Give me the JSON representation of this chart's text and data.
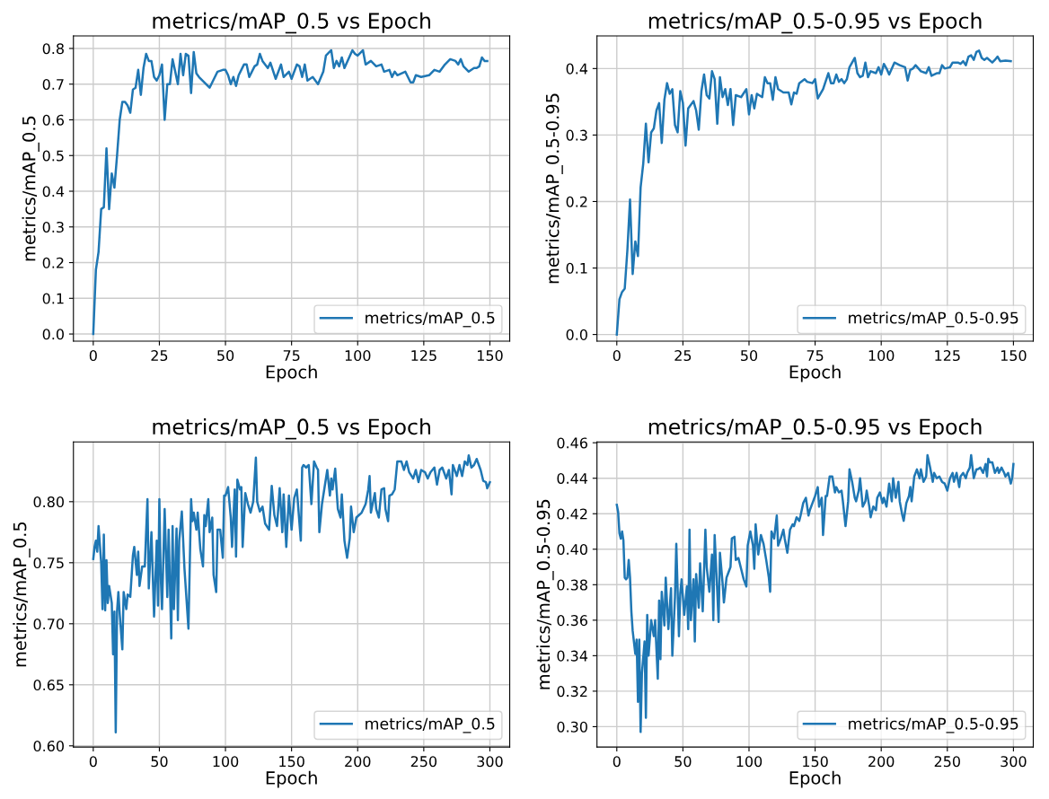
{
  "chart_data": [
    {
      "type": "line",
      "title": "metrics/mAP_0.5 vs Epoch",
      "xlabel": "Epoch",
      "ylabel": "metrics/mAP_0.5",
      "grid": true,
      "legend": "lower right",
      "xlim": [
        -7.5,
        157.5
      ],
      "ylim": [
        -0.02,
        0.835
      ],
      "xticks": [
        0,
        25,
        50,
        75,
        100,
        125,
        150
      ],
      "yticks": [
        {
          "value": 0,
          "label": "0.0"
        },
        0.1,
        0.2,
        0.3,
        0.4,
        0.5,
        0.6,
        0.7,
        0.8
      ],
      "x": [
        0,
        1,
        2,
        3,
        4,
        5,
        6,
        7,
        8,
        9,
        10,
        11,
        12,
        13,
        14,
        15,
        16,
        17,
        18,
        19,
        20,
        21,
        22,
        23,
        24,
        25,
        26,
        27,
        28,
        29,
        30,
        31,
        32,
        33,
        34,
        35,
        36,
        37,
        38,
        39,
        40,
        44,
        47,
        49,
        50,
        51,
        52,
        53,
        54,
        55,
        57,
        58,
        59,
        61,
        62,
        63,
        64,
        66,
        67,
        69,
        71,
        72,
        74,
        75,
        77,
        78,
        79,
        80,
        81,
        83,
        85,
        87,
        88,
        90,
        91,
        92,
        93,
        94,
        95,
        98,
        99,
        100,
        102,
        103,
        105,
        107,
        109,
        110,
        112,
        113,
        114,
        115,
        118,
        120,
        121,
        122,
        124,
        127,
        129,
        131,
        133,
        135,
        137,
        138,
        139,
        140,
        142,
        144,
        145,
        146,
        147,
        148,
        149
      ],
      "series": [
        {
          "name": "metrics/mAP_0.5",
          "color": "#1f77b4",
          "values": [
            0,
            0.18,
            0.23,
            0.35,
            0.355,
            0.52,
            0.35,
            0.45,
            0.41,
            0.5,
            0.6,
            0.65,
            0.65,
            0.64,
            0.62,
            0.685,
            0.69,
            0.74,
            0.67,
            0.745,
            0.785,
            0.765,
            0.765,
            0.72,
            0.71,
            0.725,
            0.755,
            0.6,
            0.7,
            0.7,
            0.77,
            0.735,
            0.7,
            0.785,
            0.725,
            0.785,
            0.78,
            0.675,
            0.79,
            0.73,
            0.72,
            0.69,
            0.735,
            0.74,
            0.74,
            0.725,
            0.7,
            0.72,
            0.695,
            0.725,
            0.755,
            0.755,
            0.72,
            0.75,
            0.755,
            0.785,
            0.765,
            0.745,
            0.76,
            0.715,
            0.755,
            0.72,
            0.735,
            0.715,
            0.755,
            0.75,
            0.72,
            0.755,
            0.71,
            0.72,
            0.7,
            0.735,
            0.78,
            0.795,
            0.745,
            0.765,
            0.75,
            0.775,
            0.745,
            0.795,
            0.785,
            0.78,
            0.795,
            0.755,
            0.765,
            0.75,
            0.755,
            0.735,
            0.74,
            0.72,
            0.735,
            0.725,
            0.735,
            0.705,
            0.705,
            0.725,
            0.72,
            0.725,
            0.74,
            0.735,
            0.755,
            0.77,
            0.765,
            0.755,
            0.77,
            0.75,
            0.735,
            0.745,
            0.745,
            0.75,
            0.775,
            0.765,
            0.765
          ]
        }
      ]
    },
    {
      "type": "line",
      "title": "metrics/mAP_0.5-0.95 vs Epoch",
      "xlabel": "Epoch",
      "ylabel": "metrics/mAP_0.5-0.95",
      "grid": true,
      "legend": "lower right",
      "xlim": [
        -7.5,
        157.5
      ],
      "ylim": [
        -0.01,
        0.449
      ],
      "xticks": [
        0,
        25,
        50,
        75,
        100,
        125,
        150
      ],
      "yticks": [
        {
          "value": 0,
          "label": "0.0"
        },
        0.1,
        0.2,
        0.3,
        0.4
      ],
      "x": [
        0,
        1,
        2,
        3,
        4,
        5,
        6,
        7,
        8,
        9,
        10,
        11,
        12,
        13,
        14,
        15,
        16,
        17,
        18,
        19,
        20,
        21,
        22,
        23,
        24,
        25,
        26,
        27,
        29,
        30,
        31,
        32,
        33,
        34,
        35,
        36,
        37,
        38,
        39,
        40,
        41,
        42,
        43,
        44,
        45,
        47,
        49,
        50,
        51,
        52,
        53,
        55,
        56,
        57,
        58,
        59,
        60,
        61,
        63,
        65,
        66,
        67,
        68,
        69,
        71,
        72,
        74,
        75,
        76,
        78,
        80,
        81,
        82,
        83,
        84,
        85,
        86,
        87,
        88,
        90,
        91,
        92,
        93,
        94,
        95,
        96,
        98,
        99,
        100,
        101,
        102,
        103,
        105,
        107,
        109,
        110,
        111,
        112,
        113,
        115,
        117,
        118,
        119,
        121,
        122,
        123,
        124,
        126,
        127,
        129,
        130,
        131,
        132,
        133,
        134,
        135,
        136,
        137,
        138,
        139,
        140,
        142,
        143,
        144,
        145,
        147,
        149
      ],
      "series": [
        {
          "name": "metrics/mAP_0.5-0.95",
          "color": "#1f77b4",
          "values": [
            0,
            0.053,
            0.064,
            0.069,
            0.127,
            0.203,
            0.091,
            0.14,
            0.118,
            0.221,
            0.257,
            0.317,
            0.259,
            0.304,
            0.31,
            0.337,
            0.348,
            0.288,
            0.353,
            0.378,
            0.362,
            0.369,
            0.315,
            0.304,
            0.366,
            0.348,
            0.284,
            0.34,
            0.351,
            0.337,
            0.308,
            0.366,
            0.391,
            0.36,
            0.355,
            0.396,
            0.384,
            0.317,
            0.387,
            0.357,
            0.369,
            0.345,
            0.369,
            0.315,
            0.36,
            0.357,
            0.369,
            0.331,
            0.36,
            0.34,
            0.362,
            0.357,
            0.387,
            0.378,
            0.378,
            0.353,
            0.387,
            0.369,
            0.364,
            0.364,
            0.346,
            0.364,
            0.362,
            0.378,
            0.384,
            0.38,
            0.378,
            0.384,
            0.355,
            0.369,
            0.393,
            0.378,
            0.378,
            0.391,
            0.38,
            0.384,
            0.378,
            0.384,
            0.402,
            0.416,
            0.393,
            0.387,
            0.389,
            0.409,
            0.387,
            0.396,
            0.393,
            0.402,
            0.391,
            0.407,
            0.4,
            0.391,
            0.409,
            0.405,
            0.402,
            0.382,
            0.398,
            0.4,
            0.405,
            0.396,
            0.393,
            0.402,
            0.389,
            0.393,
            0.393,
            0.405,
            0.4,
            0.402,
            0.409,
            0.409,
            0.407,
            0.411,
            0.405,
            0.418,
            0.42,
            0.413,
            0.425,
            0.427,
            0.416,
            0.413,
            0.416,
            0.409,
            0.413,
            0.418,
            0.411,
            0.412,
            0.411
          ]
        }
      ]
    },
    {
      "type": "line",
      "title": "metrics/mAP_0.5 vs Epoch",
      "xlabel": "Epoch",
      "ylabel": "metrics/mAP_0.5",
      "grid": true,
      "legend": "lower right",
      "xlim": [
        -15,
        315
      ],
      "ylim": [
        0.599,
        0.849
      ],
      "xticks": [
        0,
        50,
        100,
        150,
        200,
        250,
        300
      ],
      "yticks": [
        {
          "value": 0.6,
          "label": "0.60"
        },
        0.65,
        {
          "value": 0.7,
          "label": "0.70"
        },
        0.75,
        {
          "value": 0.8,
          "label": "0.80"
        }
      ],
      "x": [
        0,
        1,
        2,
        3,
        4,
        6,
        7,
        8,
        9,
        10,
        11,
        12,
        14,
        15,
        16,
        17,
        18,
        19,
        20,
        22,
        23,
        25,
        26,
        28,
        30,
        31,
        33,
        34,
        35,
        37,
        39,
        40,
        41,
        42,
        44,
        46,
        48,
        49,
        50,
        51,
        52,
        54,
        56,
        57,
        59,
        60,
        61,
        63,
        64,
        65,
        67,
        69,
        72,
        74,
        75,
        76,
        78,
        79,
        81,
        83,
        84,
        85,
        87,
        88,
        90,
        91,
        93,
        94,
        96,
        98,
        99,
        100,
        102,
        104,
        105,
        107,
        108,
        109,
        111,
        112,
        113,
        115,
        117,
        119,
        121,
        123,
        124,
        126,
        128,
        130,
        133,
        135,
        137,
        139,
        141,
        143,
        144,
        146,
        148,
        150,
        152,
        154,
        157,
        158,
        159,
        161,
        163,
        165,
        167,
        169,
        170,
        171,
        173,
        175,
        177,
        179,
        180,
        181,
        183,
        185,
        187,
        188,
        190,
        192,
        194,
        195,
        197,
        199,
        201,
        203,
        206,
        208,
        209,
        210,
        213,
        214,
        216,
        218,
        220,
        221,
        223,
        224,
        226,
        228,
        230,
        233,
        235,
        237,
        239,
        242,
        244,
        246,
        248,
        251,
        253,
        255,
        258,
        260,
        262,
        264,
        267,
        269,
        271,
        272,
        275,
        277,
        279,
        281,
        283,
        284,
        286,
        288,
        290,
        293,
        295,
        297,
        298,
        300
      ],
      "series": [
        {
          "name": "metrics/mAP_0.5",
          "color": "#1f77b4",
          "values": [
            0.753,
            0.763,
            0.768,
            0.759,
            0.78,
            0.75,
            0.712,
            0.773,
            0.711,
            0.752,
            0.717,
            0.731,
            0.717,
            0.675,
            0.71,
            0.611,
            0.71,
            0.726,
            0.708,
            0.679,
            0.726,
            0.712,
            0.724,
            0.722,
            0.756,
            0.763,
            0.74,
            0.759,
            0.731,
            0.747,
            0.747,
            0.775,
            0.802,
            0.729,
            0.775,
            0.706,
            0.768,
            0.715,
            0.802,
            0.74,
            0.712,
            0.794,
            0.722,
            0.777,
            0.688,
            0.78,
            0.712,
            0.778,
            0.703,
            0.768,
            0.792,
            0.745,
            0.696,
            0.802,
            0.784,
            0.791,
            0.777,
            0.791,
            0.761,
            0.747,
            0.789,
            0.78,
            0.802,
            0.775,
            0.787,
            0.74,
            0.726,
            0.777,
            0.777,
            0.754,
            0.805,
            0.805,
            0.812,
            0.787,
            0.763,
            0.81,
            0.755,
            0.818,
            0.81,
            0.812,
            0.763,
            0.807,
            0.798,
            0.791,
            0.8,
            0.836,
            0.8,
            0.792,
            0.796,
            0.782,
            0.777,
            0.813,
            0.789,
            0.78,
            0.811,
            0.775,
            0.806,
            0.763,
            0.805,
            0.777,
            0.803,
            0.81,
            0.768,
            0.828,
            0.83,
            0.828,
            0.83,
            0.798,
            0.833,
            0.828,
            0.826,
            0.775,
            0.798,
            0.812,
            0.826,
            0.805,
            0.819,
            0.81,
            0.827,
            0.794,
            0.787,
            0.806,
            0.768,
            0.754,
            0.77,
            0.796,
            0.775,
            0.787,
            0.789,
            0.791,
            0.798,
            0.81,
            0.821,
            0.791,
            0.807,
            0.794,
            0.787,
            0.81,
            0.811,
            0.794,
            0.784,
            0.805,
            0.806,
            0.81,
            0.833,
            0.833,
            0.826,
            0.833,
            0.824,
            0.819,
            0.826,
            0.816,
            0.826,
            0.824,
            0.819,
            0.824,
            0.828,
            0.814,
            0.826,
            0.828,
            0.819,
            0.826,
            0.806,
            0.83,
            0.821,
            0.83,
            0.821,
            0.833,
            0.83,
            0.838,
            0.828,
            0.83,
            0.835,
            0.826,
            0.817,
            0.816,
            0.811,
            0.816
          ]
        }
      ]
    },
    {
      "type": "line",
      "title": "metrics/mAP_0.5-0.95 vs Epoch",
      "xlabel": "Epoch",
      "ylabel": "metrics/mAP_0.5-0.95",
      "grid": true,
      "legend": "lower right",
      "xlim": [
        -15,
        315
      ],
      "ylim": [
        0.2885,
        0.4605
      ],
      "xticks": [
        0,
        50,
        100,
        150,
        200,
        250,
        300
      ],
      "yticks": [
        {
          "value": 0.3,
          "label": "0.30"
        },
        0.32,
        0.34,
        0.36,
        0.38,
        {
          "value": 0.4,
          "label": "0.40"
        },
        0.42,
        0.44,
        0.46
      ],
      "x": [
        0,
        1,
        2,
        3,
        4,
        5,
        6,
        7,
        8,
        9,
        10,
        11,
        12,
        14,
        15,
        16,
        17,
        18,
        19,
        21,
        22,
        23,
        24,
        26,
        28,
        29,
        31,
        32,
        33,
        34,
        36,
        37,
        39,
        41,
        42,
        44,
        45,
        47,
        48,
        49,
        51,
        53,
        54,
        55,
        56,
        58,
        59,
        60,
        62,
        63,
        65,
        67,
        68,
        70,
        72,
        73,
        74,
        76,
        77,
        78,
        80,
        81,
        83,
        84,
        86,
        87,
        89,
        90,
        92,
        94,
        96,
        98,
        99,
        101,
        103,
        104,
        105,
        107,
        109,
        111,
        113,
        115,
        116,
        117,
        119,
        121,
        122,
        124,
        126,
        127,
        129,
        131,
        133,
        134,
        136,
        138,
        139,
        141,
        143,
        145,
        146,
        148,
        150,
        152,
        153,
        155,
        156,
        158,
        159,
        161,
        163,
        165,
        166,
        168,
        170,
        171,
        173,
        175,
        176,
        178,
        180,
        181,
        183,
        184,
        186,
        188,
        189,
        191,
        192,
        194,
        196,
        197,
        199,
        201,
        202,
        204,
        206,
        208,
        209,
        211,
        213,
        214,
        216,
        217,
        219,
        221,
        222,
        223,
        225,
        227,
        229,
        230,
        232,
        234,
        235,
        237,
        239,
        240,
        242,
        244,
        246,
        248,
        250,
        252,
        254,
        255,
        257,
        259,
        260,
        262,
        264,
        265,
        267,
        268,
        270,
        272,
        273,
        275,
        277,
        279,
        280,
        281,
        282,
        284,
        286,
        288,
        289,
        291,
        293,
        294,
        296,
        298,
        299,
        300
      ],
      "series": [
        {
          "name": "metrics/mAP_0.5-0.95",
          "color": "#1f77b4",
          "values": [
            0.425,
            0.421,
            0.409,
            0.406,
            0.41,
            0.405,
            0.384,
            0.383,
            0.384,
            0.394,
            0.384,
            0.365,
            0.354,
            0.341,
            0.349,
            0.314,
            0.349,
            0.297,
            0.33,
            0.348,
            0.305,
            0.363,
            0.34,
            0.36,
            0.351,
            0.36,
            0.327,
            0.371,
            0.338,
            0.376,
            0.357,
            0.384,
            0.355,
            0.378,
            0.34,
            0.373,
            0.403,
            0.351,
            0.375,
            0.383,
            0.363,
            0.379,
            0.355,
            0.411,
            0.36,
            0.383,
            0.348,
            0.386,
            0.367,
            0.392,
            0.365,
            0.411,
            0.39,
            0.376,
            0.397,
            0.36,
            0.408,
            0.376,
            0.359,
            0.398,
            0.381,
            0.37,
            0.384,
            0.386,
            0.39,
            0.406,
            0.407,
            0.394,
            0.395,
            0.389,
            0.383,
            0.379,
            0.402,
            0.41,
            0.402,
            0.389,
            0.414,
            0.397,
            0.408,
            0.403,
            0.394,
            0.384,
            0.376,
            0.41,
            0.406,
            0.419,
            0.402,
            0.406,
            0.411,
            0.406,
            0.398,
            0.411,
            0.414,
            0.413,
            0.418,
            0.416,
            0.419,
            0.426,
            0.429,
            0.419,
            0.422,
            0.426,
            0.43,
            0.435,
            0.424,
            0.429,
            0.408,
            0.43,
            0.43,
            0.441,
            0.441,
            0.432,
            0.435,
            0.432,
            0.433,
            0.427,
            0.413,
            0.427,
            0.445,
            0.438,
            0.429,
            0.427,
            0.433,
            0.44,
            0.424,
            0.427,
            0.433,
            0.424,
            0.418,
            0.424,
            0.422,
            0.429,
            0.432,
            0.426,
            0.429,
            0.424,
            0.437,
            0.427,
            0.44,
            0.429,
            0.438,
            0.427,
            0.419,
            0.416,
            0.426,
            0.43,
            0.435,
            0.427,
            0.441,
            0.445,
            0.44,
            0.445,
            0.438,
            0.441,
            0.453,
            0.446,
            0.438,
            0.443,
            0.44,
            0.441,
            0.438,
            0.437,
            0.433,
            0.44,
            0.443,
            0.438,
            0.443,
            0.435,
            0.441,
            0.443,
            0.44,
            0.443,
            0.446,
            0.453,
            0.44,
            0.445,
            0.445,
            0.446,
            0.443,
            0.448,
            0.441,
            0.451,
            0.449,
            0.449,
            0.443,
            0.446,
            0.443,
            0.446,
            0.443,
            0.441,
            0.443,
            0.437,
            0.44,
            0.448
          ]
        }
      ]
    }
  ]
}
